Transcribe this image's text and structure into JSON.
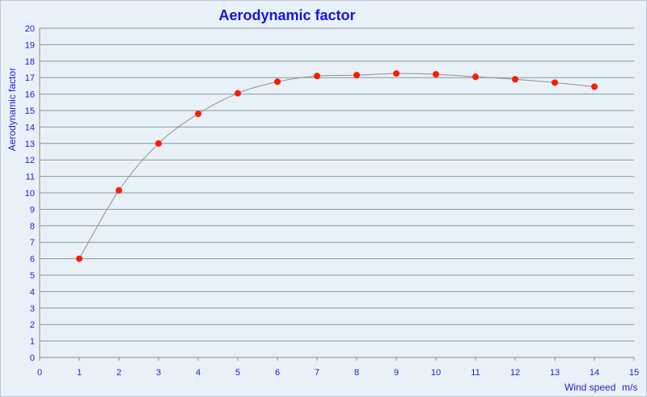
{
  "chart_data": {
    "type": "scatter",
    "title": "Aerodynamic factor",
    "xlabel": "Wind speed",
    "xunit": "m/s",
    "ylabel": "Aerodynamic factor",
    "xlim": [
      0,
      15
    ],
    "ylim": [
      0,
      20
    ],
    "x_ticks": [
      0,
      1,
      2,
      3,
      4,
      5,
      6,
      7,
      8,
      9,
      10,
      11,
      12,
      13,
      14,
      15
    ],
    "y_ticks": [
      0,
      1,
      2,
      3,
      4,
      5,
      6,
      7,
      8,
      9,
      10,
      11,
      12,
      13,
      14,
      15,
      16,
      17,
      18,
      19,
      20
    ],
    "grid": true,
    "legend": false,
    "series": [
      {
        "x": [
          1,
          2,
          3,
          4,
          5,
          6,
          7,
          8,
          9,
          10,
          11,
          12,
          13,
          14
        ],
        "y": [
          6.0,
          10.15,
          13.0,
          14.8,
          16.05,
          16.75,
          17.1,
          17.15,
          17.25,
          17.2,
          17.05,
          16.9,
          16.7,
          16.45
        ],
        "marker_color": "#ff1a00",
        "line_color": "#909090",
        "smooth_trend": true
      }
    ],
    "colors": {
      "background": "#e9f1f8",
      "grid": "#7f9aa8",
      "axis_text": "#2020d0",
      "title": "#1414e0"
    }
  }
}
